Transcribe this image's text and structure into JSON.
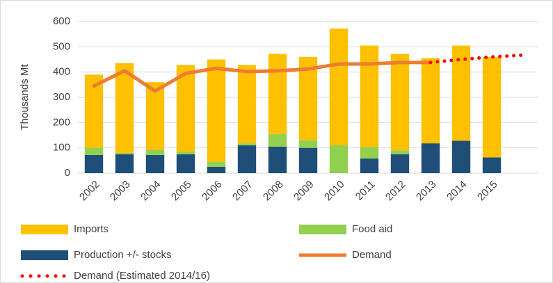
{
  "chart_data": {
    "type": "bar",
    "y_label": "Thousands Mt",
    "categories": [
      "2002",
      "2003",
      "2004",
      "2005",
      "2006",
      "2007",
      "2008",
      "2009",
      "2010",
      "2011",
      "2012",
      "2013",
      "2014",
      "2015",
      null
    ],
    "series": [
      {
        "name": "Production +/- stocks",
        "kind": "bar",
        "color": "#1f4e79",
        "values": [
          72,
          75,
          72,
          75,
          25,
          110,
          105,
          100,
          0,
          58,
          75,
          118,
          128,
          62,
          null
        ]
      },
      {
        "name": "Food aid",
        "kind": "bar",
        "color": "#92d050",
        "values": [
          28,
          5,
          20,
          10,
          20,
          8,
          50,
          30,
          110,
          45,
          15,
          0,
          0,
          0,
          null
        ]
      },
      {
        "name": "Imports",
        "kind": "bar",
        "color": "#ffc000",
        "values": [
          290,
          355,
          268,
          343,
          405,
          310,
          317,
          330,
          462,
          402,
          382,
          337,
          377,
          398,
          null
        ]
      },
      {
        "name": "Demand",
        "kind": "line",
        "color": "#ed7d31",
        "values": [
          345,
          405,
          325,
          395,
          415,
          402,
          405,
          412,
          432,
          432,
          438,
          438,
          null,
          null,
          null
        ]
      },
      {
        "name": "Demand (Estimated 2014/16)",
        "kind": "dotted",
        "color": "#ff0000",
        "values": [
          null,
          null,
          null,
          null,
          null,
          null,
          null,
          null,
          null,
          null,
          null,
          438,
          450,
          460,
          467
        ]
      }
    ],
    "legend_order": [
      2,
      1,
      0,
      3,
      4
    ],
    "ylim": [
      0,
      600
    ],
    "yticks": [
      0,
      100,
      200,
      300,
      400,
      500,
      600
    ],
    "grid": true
  }
}
